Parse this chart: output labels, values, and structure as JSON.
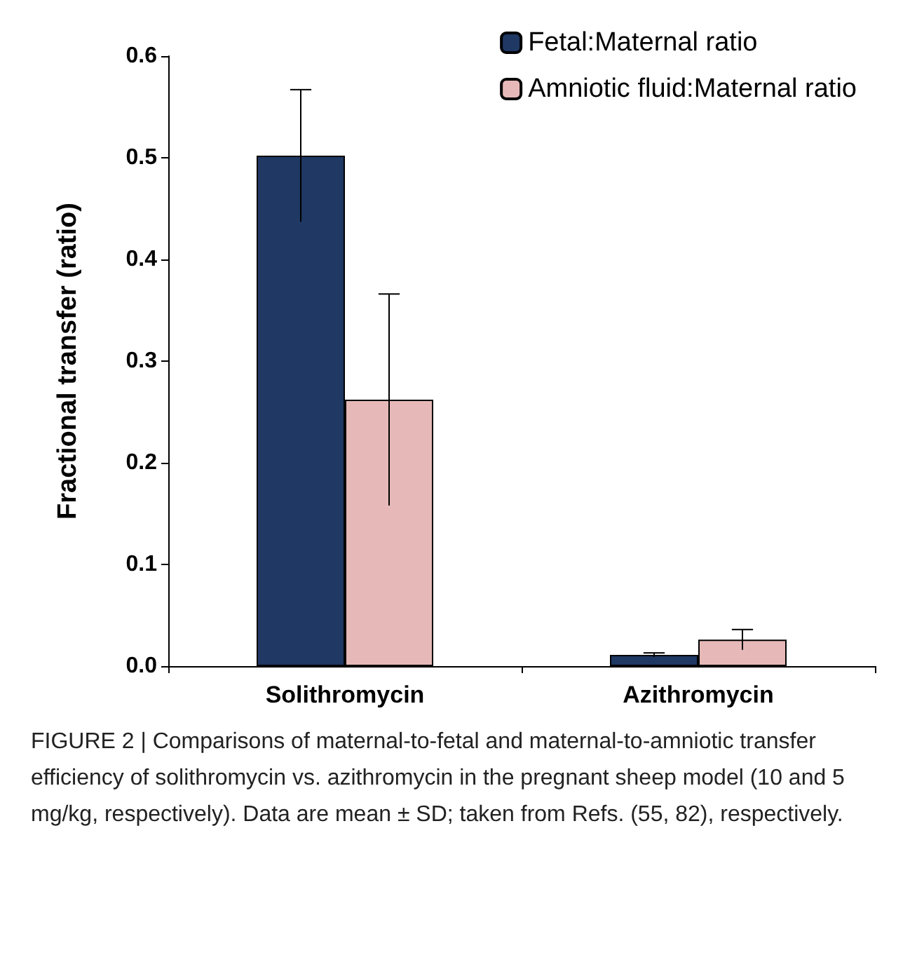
{
  "chart_data": {
    "type": "bar",
    "ylabel": "Fractional transfer (ratio)",
    "categories": [
      "Solithromycin",
      "Azithromycin"
    ],
    "series": [
      {
        "name": "Fetal:Maternal ratio",
        "color": "#1f3864",
        "values": [
          0.502,
          0.011
        ],
        "errors": [
          0.065,
          0.002
        ]
      },
      {
        "name": "Amniotic fluid:Maternal ratio",
        "color": "#e6b9b8",
        "values": [
          0.262,
          0.026
        ],
        "errors": [
          0.104,
          0.01
        ]
      }
    ],
    "ylim": [
      0,
      0.6
    ],
    "yticks": [
      {
        "value": 0,
        "label": "0.0"
      },
      0.1,
      0.2,
      0.3,
      0.4,
      0.5,
      0.6
    ],
    "grid": false,
    "legend": "top right",
    "annotations": [
      "FIGURE 2 | Comparisons of maternal-to-fetal and maternal-to-amniotic transfer efficiency of solithromycin vs. azithromycin in the pregnant sheep model (10 and 5 mg/kg, respectively). Data are mean ± SD; taken from Refs. (55, 82), respectively."
    ]
  }
}
